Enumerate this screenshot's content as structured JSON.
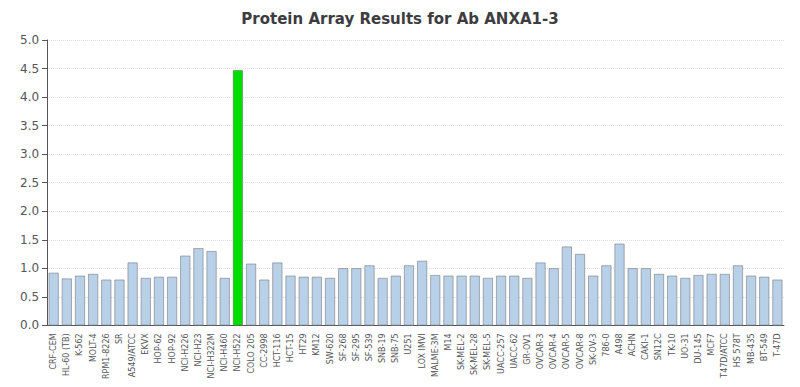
{
  "chart_data": {
    "type": "bar",
    "title": "Protein Array Results for Ab ANXA1-3",
    "categories": [
      "CRF-CEM",
      "HL-60 (TB)",
      "K-562",
      "MOLT-4",
      "RPM1-8226",
      "SR",
      "A549/ATCC",
      "EKVX",
      "HOP-62",
      "HOP-92",
      "NCI-H226",
      "NCI-H23",
      "NCI-H322M",
      "NCI-H460",
      "NCI-H522",
      "COLO 205",
      "CC-2998",
      "HCT-116",
      "HCT-15",
      "HT29",
      "KM12",
      "SW-620",
      "SF-268",
      "SF-295",
      "SF-539",
      "SNB-19",
      "SNB-75",
      "U251",
      "LOX IMVI",
      "MALME-3M",
      "M14",
      "SK-MEL-2",
      "SK-MEL-28",
      "SK-MEL-5",
      "UACC-257",
      "UACC-62",
      "GR-OV1",
      "OVCAR-3",
      "OVCAR-4",
      "OVCAR-5",
      "OVCAR-8",
      "SK-OV-3",
      "786-0",
      "A498",
      "ACHN",
      "CAKI-1",
      "SN12C",
      "TK-10",
      "UO-31",
      "DU-145",
      "MCF7",
      "T47D/ATCC",
      "HS 578T",
      "MB-435",
      "BT-549",
      "T-47D"
    ],
    "values": [
      0.92,
      0.82,
      0.87,
      0.9,
      0.8,
      0.8,
      1.1,
      0.83,
      0.85,
      0.85,
      1.22,
      1.35,
      1.3,
      0.83,
      4.47,
      1.08,
      0.8,
      1.1,
      0.87,
      0.85,
      0.85,
      0.83,
      1.0,
      1.0,
      1.05,
      0.83,
      0.87,
      1.05,
      1.13,
      0.88,
      0.87,
      0.87,
      0.87,
      0.83,
      0.87,
      0.87,
      0.83,
      1.1,
      1.0,
      1.38,
      1.25,
      0.87,
      1.05,
      1.43,
      1.0,
      1.0,
      0.9,
      0.87,
      0.83,
      0.88,
      0.9,
      0.9,
      1.05,
      0.87,
      0.85,
      0.8
    ],
    "colors": [
      "#b8d0e8",
      "#b8d0e8",
      "#b8d0e8",
      "#b8d0e8",
      "#b8d0e8",
      "#b8d0e8",
      "#b8d0e8",
      "#b8d0e8",
      "#b8d0e8",
      "#b8d0e8",
      "#b8d0e8",
      "#b8d0e8",
      "#b8d0e8",
      "#b8d0e8",
      "#00dd00",
      "#b8d0e8",
      "#b8d0e8",
      "#b8d0e8",
      "#b8d0e8",
      "#b8d0e8",
      "#b8d0e8",
      "#b8d0e8",
      "#b8d0e8",
      "#b8d0e8",
      "#b8d0e8",
      "#b8d0e8",
      "#b8d0e8",
      "#b8d0e8",
      "#b8d0e8",
      "#b8d0e8",
      "#b8d0e8",
      "#b8d0e8",
      "#b8d0e8",
      "#b8d0e8",
      "#b8d0e8",
      "#b8d0e8",
      "#b8d0e8",
      "#b8d0e8",
      "#b8d0e8",
      "#b8d0e8",
      "#b8d0e8",
      "#b8d0e8",
      "#b8d0e8",
      "#b8d0e8",
      "#b8d0e8",
      "#b8d0e8",
      "#b8d0e8",
      "#b8d0e8",
      "#b8d0e8",
      "#b8d0e8",
      "#b8d0e8",
      "#b8d0e8",
      "#b8d0e8",
      "#b8d0e8",
      "#b8d0e8",
      "#b8d0e8"
    ],
    "ylim": [
      0.0,
      5.0
    ],
    "yticks": [
      {
        "value": 0,
        "label": "0.0"
      },
      0.5,
      {
        "value": 1,
        "label": "1.0"
      },
      1.5,
      {
        "value": 2,
        "label": "2.0"
      },
      2.5,
      {
        "value": 3,
        "label": "3.0"
      },
      3.5,
      {
        "value": 4,
        "label": "4.0"
      },
      4.5,
      {
        "value": 5,
        "label": "5.0"
      }
    ],
    "grid": true
  }
}
